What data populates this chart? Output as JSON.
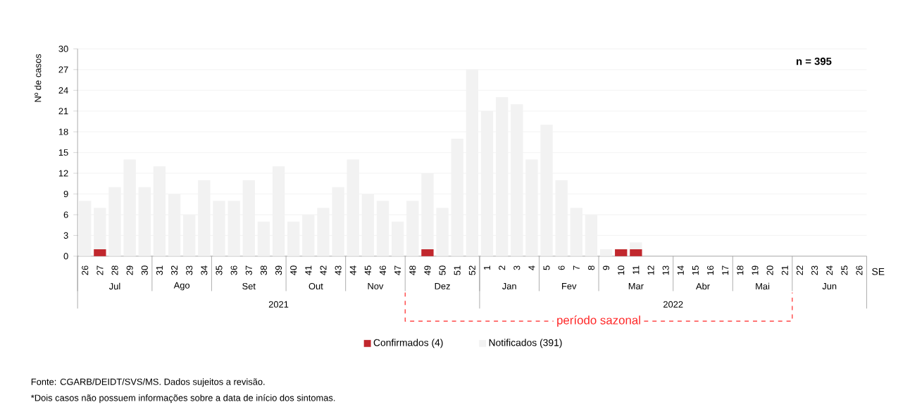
{
  "chart_data": {
    "type": "bar",
    "stacked": true,
    "ylabel": "Nº de casos",
    "xlabel": "SE",
    "categories": [
      "26",
      "27",
      "28",
      "29",
      "30",
      "31",
      "32",
      "33",
      "34",
      "35",
      "36",
      "37",
      "38",
      "39",
      "40",
      "41",
      "42",
      "43",
      "44",
      "45",
      "46",
      "47",
      "48",
      "49",
      "50",
      "51",
      "52",
      "1",
      "2",
      "3",
      "4",
      "5",
      "6",
      "7",
      "8",
      "9",
      "10",
      "11",
      "12",
      "13",
      "14",
      "15",
      "16",
      "17",
      "18",
      "19",
      "20",
      "21",
      "22",
      "23",
      "24",
      "25",
      "26"
    ],
    "series": [
      {
        "name": "Confirmados (4)",
        "color": "#c1272d",
        "values": [
          0,
          1,
          0,
          0,
          0,
          0,
          0,
          0,
          0,
          0,
          0,
          0,
          0,
          0,
          0,
          0,
          0,
          0,
          0,
          0,
          0,
          0,
          0,
          1,
          0,
          0,
          0,
          0,
          0,
          0,
          0,
          0,
          0,
          0,
          0,
          0,
          1,
          1,
          0,
          0,
          0,
          0,
          0,
          0,
          0,
          0,
          0,
          0,
          0,
          0,
          0,
          0,
          0
        ]
      },
      {
        "name": "Notificados (391)",
        "color": "#f2f2f2",
        "values": [
          8,
          6,
          10,
          14,
          10,
          13,
          9,
          6,
          11,
          8,
          8,
          11,
          5,
          13,
          5,
          6,
          7,
          10,
          14,
          9,
          8,
          5,
          8,
          11,
          7,
          17,
          27,
          21,
          23,
          22,
          14,
          19,
          11,
          7,
          6,
          1,
          0,
          1,
          0,
          0,
          0,
          0,
          0,
          0,
          0,
          0,
          0,
          0,
          0,
          0,
          0,
          0,
          0
        ]
      }
    ],
    "ylim": [
      0,
      30
    ],
    "yticks": [
      0,
      3,
      6,
      9,
      12,
      15,
      18,
      21,
      24,
      27,
      30
    ],
    "grid": "y",
    "legend": "bottom",
    "annotations": [
      "n = 395",
      "Jul",
      "Ago",
      "Set",
      "Out",
      "Nov",
      "Dez",
      "Jan",
      "Fev",
      "Mar",
      "Abr",
      "Mai",
      "Jun",
      "2021",
      "2022",
      "período sazonal",
      "Fonte: CGARB/DEIDT/SVS/MS. Dados sujeitos a revisão.",
      "*Dois casos não possuem informações sobre a data de início dos sintomas."
    ]
  }
}
